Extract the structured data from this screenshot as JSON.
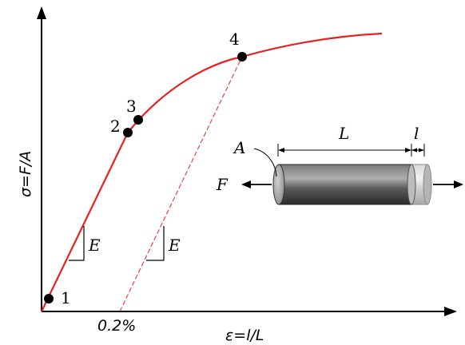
{
  "axes": {
    "x_label": "ε=l/L",
    "y_label": "σ=F/A",
    "x_tick_label": "0.2%"
  },
  "points": [
    "1",
    "2",
    "3",
    "4"
  ],
  "slope_labels": [
    "E",
    "E"
  ],
  "specimen": {
    "area_label": "A",
    "force_label": "F",
    "length_label": "L",
    "extension_label": "l"
  },
  "colors": {
    "curve": "#e8201f",
    "offset_line": "#e8201f",
    "axes": "#000000",
    "specimen_body": "#555555",
    "specimen_extension": "#cccccc"
  }
}
